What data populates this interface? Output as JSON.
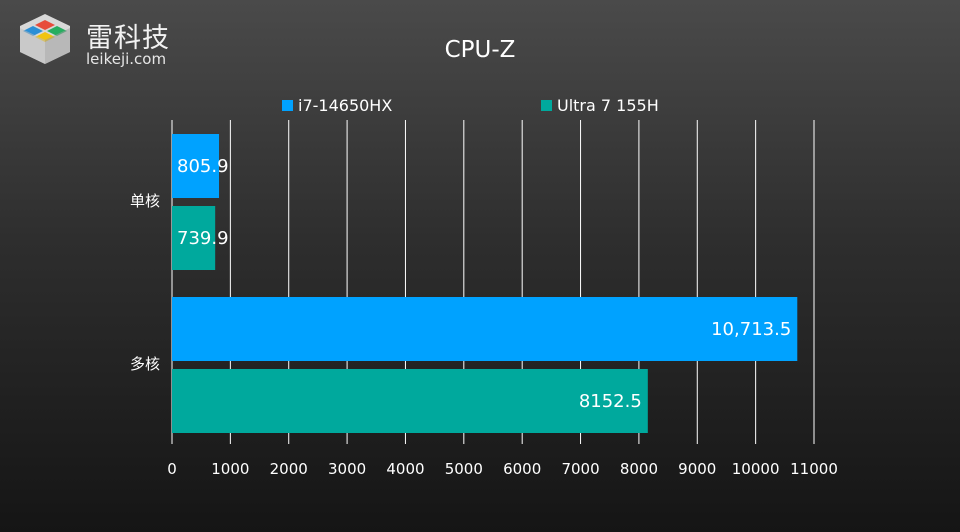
{
  "brand": {
    "name": "雷科技",
    "url": "leikeji.com",
    "tile_colors": [
      "#e74c3c",
      "#27ae60",
      "#2b8fd6",
      "#f1c40f"
    ]
  },
  "colors": {
    "series_1": "#00a2ff",
    "series_2": "#00a99d",
    "grid": "#ffffff",
    "text": "#ffffff"
  },
  "chart_data": {
    "type": "bar",
    "orientation": "horizontal",
    "title": "CPU-Z",
    "categories": [
      "单核",
      "多核"
    ],
    "series": [
      {
        "name": "i7-14650HX",
        "values": [
          805.9,
          10713.5
        ],
        "labels": [
          "805.9",
          "10,713.5"
        ]
      },
      {
        "name": "Ultra 7 155H",
        "values": [
          739.9,
          8152.5
        ],
        "labels": [
          "739.9",
          "8152.5"
        ]
      }
    ],
    "xlim": [
      0,
      11000
    ],
    "xticks": [
      "0",
      "1000",
      "2000",
      "3000",
      "4000",
      "5000",
      "6000",
      "7000",
      "8000",
      "9000",
      "10000",
      "11000"
    ],
    "grid": "vertical",
    "legend_position": "top"
  }
}
